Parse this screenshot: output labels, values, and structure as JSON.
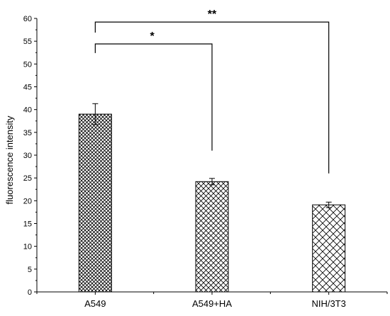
{
  "chart_data": {
    "type": "bar",
    "title": "",
    "xlabel": "",
    "ylabel": "fluorescence intensity",
    "ylim": [
      0,
      60
    ],
    "yticks": [
      0,
      5,
      10,
      15,
      20,
      25,
      30,
      35,
      40,
      45,
      50,
      55,
      60
    ],
    "categories": [
      "A549",
      "A549+HA",
      "NIH/3T3"
    ],
    "values": [
      39,
      24.2,
      19.1
    ],
    "errors": [
      2.3,
      0.7,
      0.6
    ],
    "bar_pattern": [
      "dense crosshatch",
      "crosshatch",
      "wide crosshatch"
    ],
    "significance": [
      {
        "from": "A549",
        "to": "A549+HA",
        "label": "*"
      },
      {
        "from": "A549",
        "to": "NIH/3T3",
        "label": "**"
      }
    ],
    "grid": false,
    "legend": "none"
  }
}
